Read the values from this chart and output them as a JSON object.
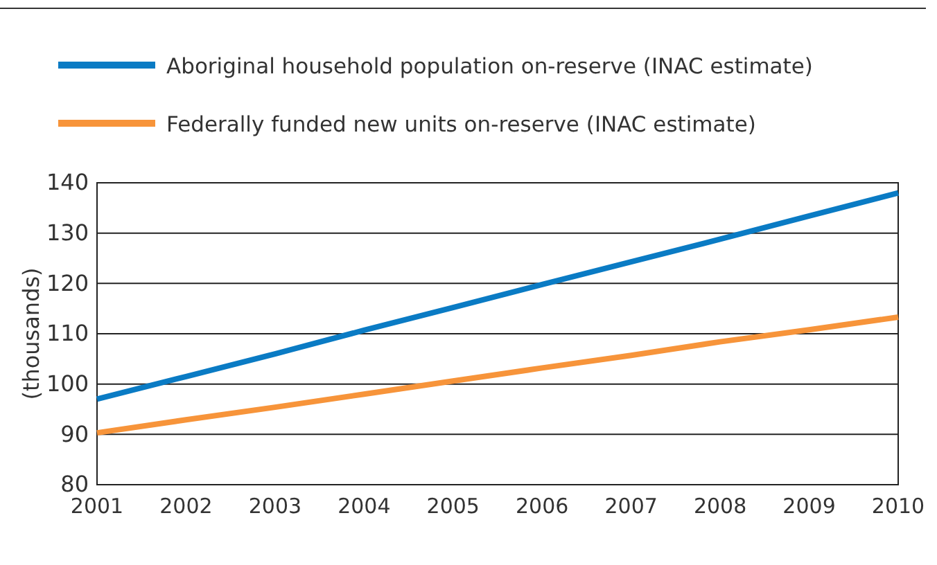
{
  "chart_data": {
    "type": "line",
    "ylabel": "(thousands)",
    "x": [
      2001,
      2002,
      2003,
      2004,
      2005,
      2006,
      2007,
      2008,
      2009,
      2010
    ],
    "xlim": [
      2001,
      2010
    ],
    "xticks": [
      2001,
      2002,
      2003,
      2004,
      2005,
      2006,
      2007,
      2008,
      2009,
      2010
    ],
    "ylim": [
      80,
      140
    ],
    "yticks": [
      80,
      90,
      100,
      110,
      120,
      130,
      140
    ],
    "grid": "y",
    "legend": "top",
    "marker": "none",
    "line_style": "solid",
    "series": [
      {
        "name": "Aboriginal household population on-reserve (INAC estimate)",
        "color": "#0a7bc4",
        "values": [
          97,
          101.5,
          106,
          110.7,
          115.2,
          119.8,
          124.3,
          128.8,
          133.4,
          138
        ]
      },
      {
        "name": "Federally funded new units on-reserve (INAC estimate)",
        "color": "#f7943a",
        "values": [
          90.3,
          92.9,
          95.4,
          98,
          100.6,
          103.2,
          105.7,
          108.4,
          110.8,
          113.3
        ]
      }
    ]
  }
}
